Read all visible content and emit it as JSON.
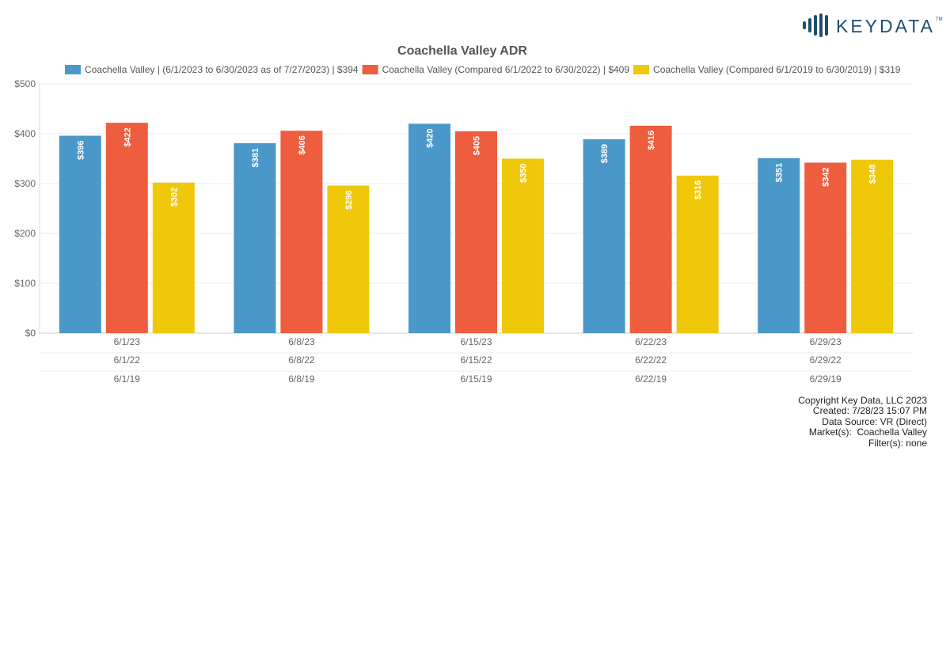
{
  "brand": {
    "logo_text": "KEYDATA",
    "trademark": "TM",
    "logo_color": "#1d4e6e"
  },
  "chart_data": {
    "type": "bar",
    "title": "Coachella Valley ADR",
    "xlabel": "",
    "ylabel": "",
    "ylim": [
      0,
      500
    ],
    "y_ticks": [
      0,
      100,
      200,
      300,
      400,
      500
    ],
    "y_tick_labels": [
      "$0",
      "$100",
      "$200",
      "$300",
      "$400",
      "$500"
    ],
    "grid": true,
    "legend_position": "top",
    "value_prefix": "$",
    "categories": [
      [
        "6/1/23",
        "6/1/22",
        "6/1/19"
      ],
      [
        "6/8/23",
        "6/8/22",
        "6/8/19"
      ],
      [
        "6/15/23",
        "6/15/22",
        "6/15/19"
      ],
      [
        "6/22/23",
        "6/22/22",
        "6/22/19"
      ],
      [
        "6/29/23",
        "6/29/22",
        "6/29/19"
      ]
    ],
    "series": [
      {
        "name": "Coachella Valley | (6/1/2023 to 6/30/2023 as of 7/27/2023) | $394",
        "color": "#4a98c9",
        "values": [
          396,
          381,
          420,
          389,
          351
        ]
      },
      {
        "name": "Coachella Valley (Compared 6/1/2022 to 6/30/2022) | $409",
        "color": "#ee5e3e",
        "values": [
          422,
          406,
          405,
          416,
          342
        ]
      },
      {
        "name": "Coachella Valley (Compared 6/1/2019 to 6/30/2019) | $319",
        "color": "#efc809",
        "values": [
          302,
          296,
          350,
          316,
          348
        ]
      }
    ]
  },
  "footer": {
    "lines": [
      "Copyright Key Data, LLC 2023",
      "Created: 7/28/23 15:07 PM",
      "Data Source: VR (Direct)",
      "Market(s):  Coachella Valley",
      "Filter(s): none"
    ]
  }
}
